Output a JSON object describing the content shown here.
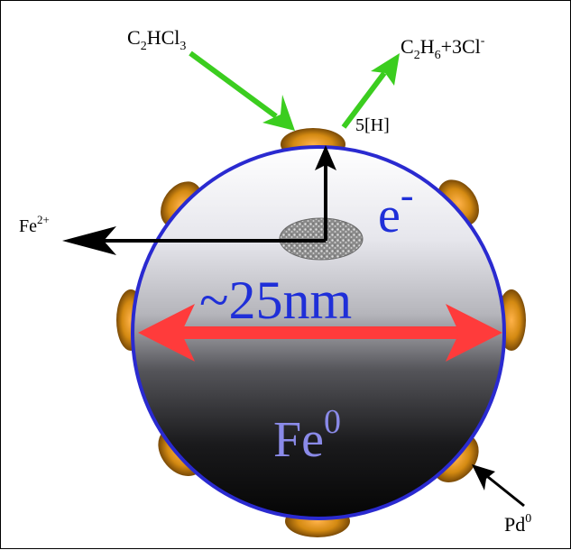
{
  "labels": {
    "reactant": {
      "base": "C",
      "sub1": "2",
      "mid": "HCl",
      "sub2": "3"
    },
    "product": {
      "p1": "C",
      "s1": "2",
      "p2": "H",
      "s2": "6",
      "p3": "+3Cl",
      "sup": "-"
    },
    "hydrogen": "5[H]",
    "electron": {
      "base": "e",
      "sup": "-"
    },
    "iron_ion": {
      "base": "Fe",
      "sup": "2+"
    },
    "size": "~25nm",
    "iron_core": {
      "base": "Fe",
      "sup": "0"
    },
    "palladium": {
      "base": "Pd",
      "sup": "0"
    }
  },
  "colors": {
    "sphere_outline": "#2a2ad0",
    "size_label": "#1f2fd8",
    "size_arrow": "#ff3b3b",
    "reaction_arrow": "#3bcd1f",
    "pd_bump": "#d48a12",
    "iron_core_label": "#8a8ae8"
  }
}
